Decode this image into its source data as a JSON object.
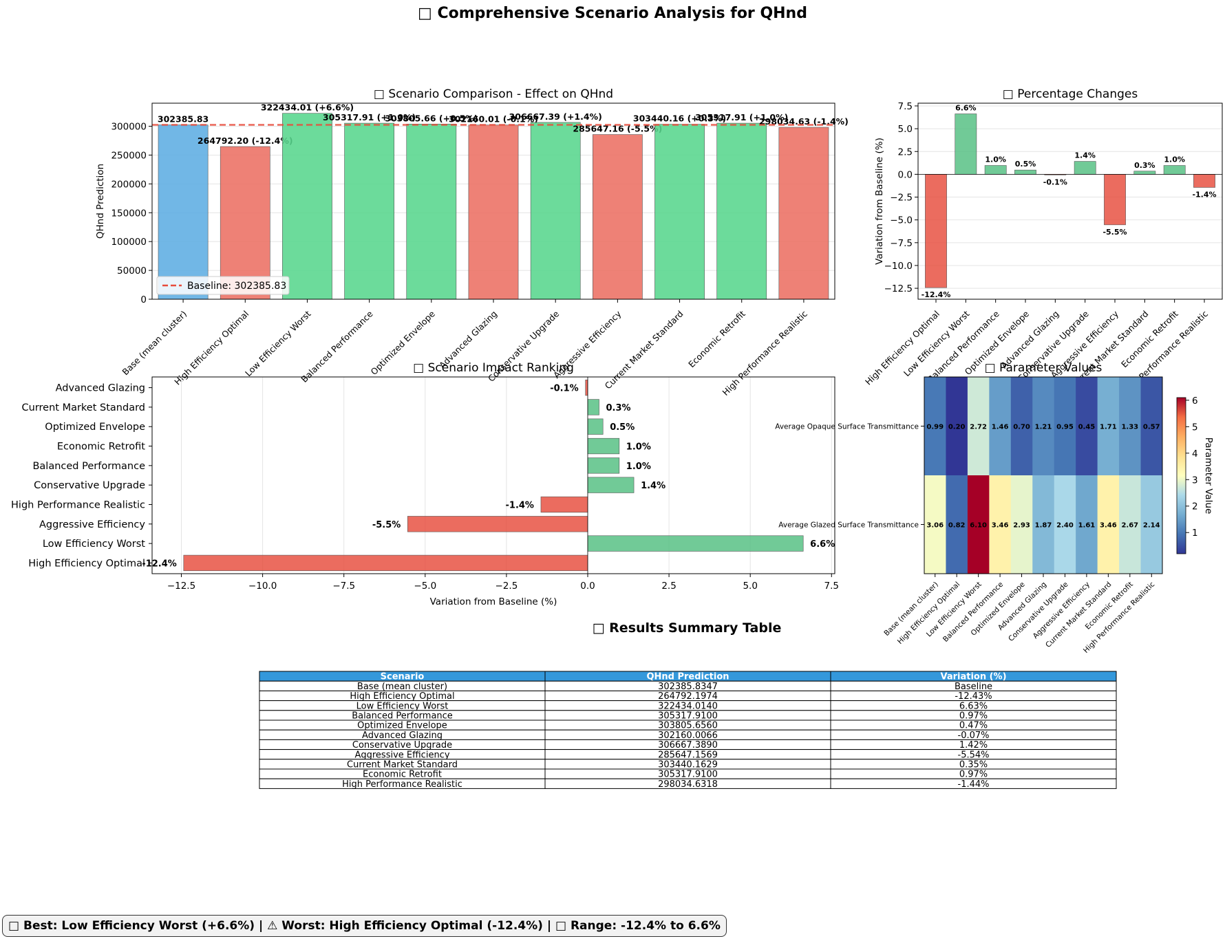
{
  "page": {
    "title": "□ Comprehensive Scenario Analysis for QHnd",
    "summary": "□ Best: Low Efficiency Worst (+6.6%) | ⚠ Worst: High Efficiency Optimal (-12.4%) | □ Range: -12.4% to 6.6%",
    "table_title": "□ Results Summary Table"
  },
  "colors": {
    "baseline": "#5DADE2",
    "positive": "#58D68D",
    "negative": "#EC7063",
    "pct_positive": "#52BE80",
    "pct_negative": "#E74C3C",
    "baseline_line": "#E74C3C",
    "table_header": "#3498DB"
  },
  "chart_data": [
    {
      "id": "comparison",
      "type": "bar",
      "title": "□ Scenario Comparison - Effect on QHnd",
      "xlabel": "",
      "ylabel": "QHnd Prediction",
      "ylim": [
        0,
        340000
      ],
      "yticks": [
        0,
        50000,
        100000,
        150000,
        200000,
        250000,
        300000
      ],
      "grid": "y",
      "legend": "Baseline: 302385.83",
      "legend_position": "lower-left",
      "baseline": 302385.83,
      "categories": [
        "Base (mean cluster)",
        "High Efficiency Optimal",
        "Low Efficiency Worst",
        "Balanced Performance",
        "Optimized Envelope",
        "Advanced Glazing",
        "Conservative Upgrade",
        "Aggressive Efficiency",
        "Current Market Standard",
        "Economic Retrofit",
        "High Performance Realistic"
      ],
      "values": [
        302385.83,
        264792.2,
        322434.01,
        305317.91,
        303805.66,
        302160.01,
        306667.39,
        285647.16,
        303440.16,
        305317.91,
        298034.63
      ],
      "labels": [
        "302385.83",
        "264792.20 (-12.4%)",
        "322434.01 (+6.6%)",
        "305317.91 (+1.0%)",
        "303805.66 (+0.5%)",
        "302160.01 (-0.1%)",
        "306667.39 (+1.4%)",
        "285647.16 (-5.5%)",
        "303440.16 (+0.3%)",
        "305317.91 (+1.0%)",
        "298034.63 (-1.4%)"
      ]
    },
    {
      "id": "percent",
      "type": "bar",
      "title": "□ Percentage Changes",
      "xlabel": "",
      "ylabel": "Variation from Baseline (%)",
      "ylim": [
        -13.7,
        7.8
      ],
      "yticks": [
        -12.5,
        -10.0,
        -7.5,
        -5.0,
        -2.5,
        0.0,
        2.5,
        5.0,
        7.5
      ],
      "ytick_labels": [
        "−12.5",
        "−10.0",
        "−7.5",
        "−5.0",
        "−2.5",
        "0.0",
        "2.5",
        "5.0",
        "7.5"
      ],
      "grid": "y",
      "categories": [
        "High Efficiency Optimal",
        "Low Efficiency Worst",
        "Balanced Performance",
        "Optimized Envelope",
        "Advanced Glazing",
        "Conservative Upgrade",
        "Aggressive Efficiency",
        "Current Market Standard",
        "Economic Retrofit",
        "High Performance Realistic"
      ],
      "values": [
        -12.43,
        6.63,
        0.97,
        0.47,
        -0.07,
        1.42,
        -5.54,
        0.35,
        0.97,
        -1.44
      ],
      "labels": [
        "-12.4%",
        "6.6%",
        "1.0%",
        "0.5%",
        "-0.1%",
        "1.4%",
        "-5.5%",
        "0.3%",
        "1.0%",
        "-1.4%"
      ]
    },
    {
      "id": "ranking",
      "type": "bar",
      "orientation": "horizontal",
      "title": "□ Scenario Impact Ranking",
      "xlabel": "Variation from Baseline (%)",
      "ylabel": "",
      "xlim": [
        -13.4,
        7.6
      ],
      "xticks": [
        -12.5,
        -10.0,
        -7.5,
        -5.0,
        -2.5,
        0.0,
        2.5,
        5.0,
        7.5
      ],
      "xtick_labels": [
        "−12.5",
        "−10.0",
        "−7.5",
        "−5.0",
        "−2.5",
        "0.0",
        "2.5",
        "5.0",
        "7.5"
      ],
      "grid": "x",
      "categories": [
        "Advanced Glazing",
        "Current Market Standard",
        "Optimized Envelope",
        "Economic Retrofit",
        "Balanced Performance",
        "Conservative Upgrade",
        "High Performance Realistic",
        "Aggressive Efficiency",
        "Low Efficiency Worst",
        "High Efficiency Optimal"
      ],
      "values": [
        -0.07,
        0.35,
        0.47,
        0.97,
        0.97,
        1.42,
        -1.44,
        -5.54,
        6.63,
        -12.43
      ],
      "labels": [
        "-0.1%",
        "0.3%",
        "0.5%",
        "1.0%",
        "1.0%",
        "1.4%",
        "-1.4%",
        "-5.5%",
        "6.6%",
        "-12.4%"
      ]
    },
    {
      "id": "heatmap",
      "type": "heatmap",
      "title": "□ Parameter Values",
      "colorbar_label": "Parameter Value",
      "colorbar_range": [
        0.2,
        6.1
      ],
      "colorbar_ticks": [
        1,
        2,
        3,
        4,
        5,
        6
      ],
      "rows": [
        "Average Opaque Surface Transmittance",
        "Average Glazed Surface Transmittance"
      ],
      "columns": [
        "Base (mean cluster)",
        "High Efficiency Optimal",
        "Low Efficiency Worst",
        "Balanced Performance",
        "Optimized Envelope",
        "Advanced Glazing",
        "Conservative Upgrade",
        "Aggressive Efficiency",
        "Current Market Standard",
        "Economic Retrofit",
        "High Performance Realistic"
      ],
      "values": [
        [
          0.99,
          0.2,
          2.72,
          1.46,
          0.7,
          1.21,
          0.95,
          0.45,
          1.71,
          1.33,
          0.57
        ],
        [
          3.06,
          0.82,
          6.1,
          3.46,
          2.93,
          1.87,
          2.4,
          1.61,
          3.46,
          2.67,
          2.14
        ]
      ],
      "labels": [
        [
          "0.99",
          "0.20",
          "2.72",
          "1.46",
          "0.70",
          "1.21",
          "0.95",
          "0.45",
          "1.71",
          "1.33",
          "0.57"
        ],
        [
          "3.06",
          "0.82",
          "6.10",
          "3.46",
          "2.93",
          "1.87",
          "2.40",
          "1.61",
          "3.46",
          "2.67",
          "2.14"
        ]
      ]
    },
    {
      "id": "summary_table",
      "type": "table",
      "columns": [
        "Scenario",
        "QHnd Prediction",
        "Variation (%)"
      ],
      "rows": [
        [
          "Base (mean cluster)",
          "302385.8347",
          "Baseline"
        ],
        [
          "High Efficiency Optimal",
          "264792.1974",
          "-12.43%"
        ],
        [
          "Low Efficiency Worst",
          "322434.0140",
          "6.63%"
        ],
        [
          "Balanced Performance",
          "305317.9100",
          "0.97%"
        ],
        [
          "Optimized Envelope",
          "303805.6560",
          "0.47%"
        ],
        [
          "Advanced Glazing",
          "302160.0066",
          "-0.07%"
        ],
        [
          "Conservative Upgrade",
          "306667.3890",
          "1.42%"
        ],
        [
          "Aggressive Efficiency",
          "285647.1569",
          "-5.54%"
        ],
        [
          "Current Market Standard",
          "303440.1629",
          "0.35%"
        ],
        [
          "Economic Retrofit",
          "305317.9100",
          "0.97%"
        ],
        [
          "High Performance Realistic",
          "298034.6318",
          "-1.44%"
        ]
      ]
    }
  ]
}
